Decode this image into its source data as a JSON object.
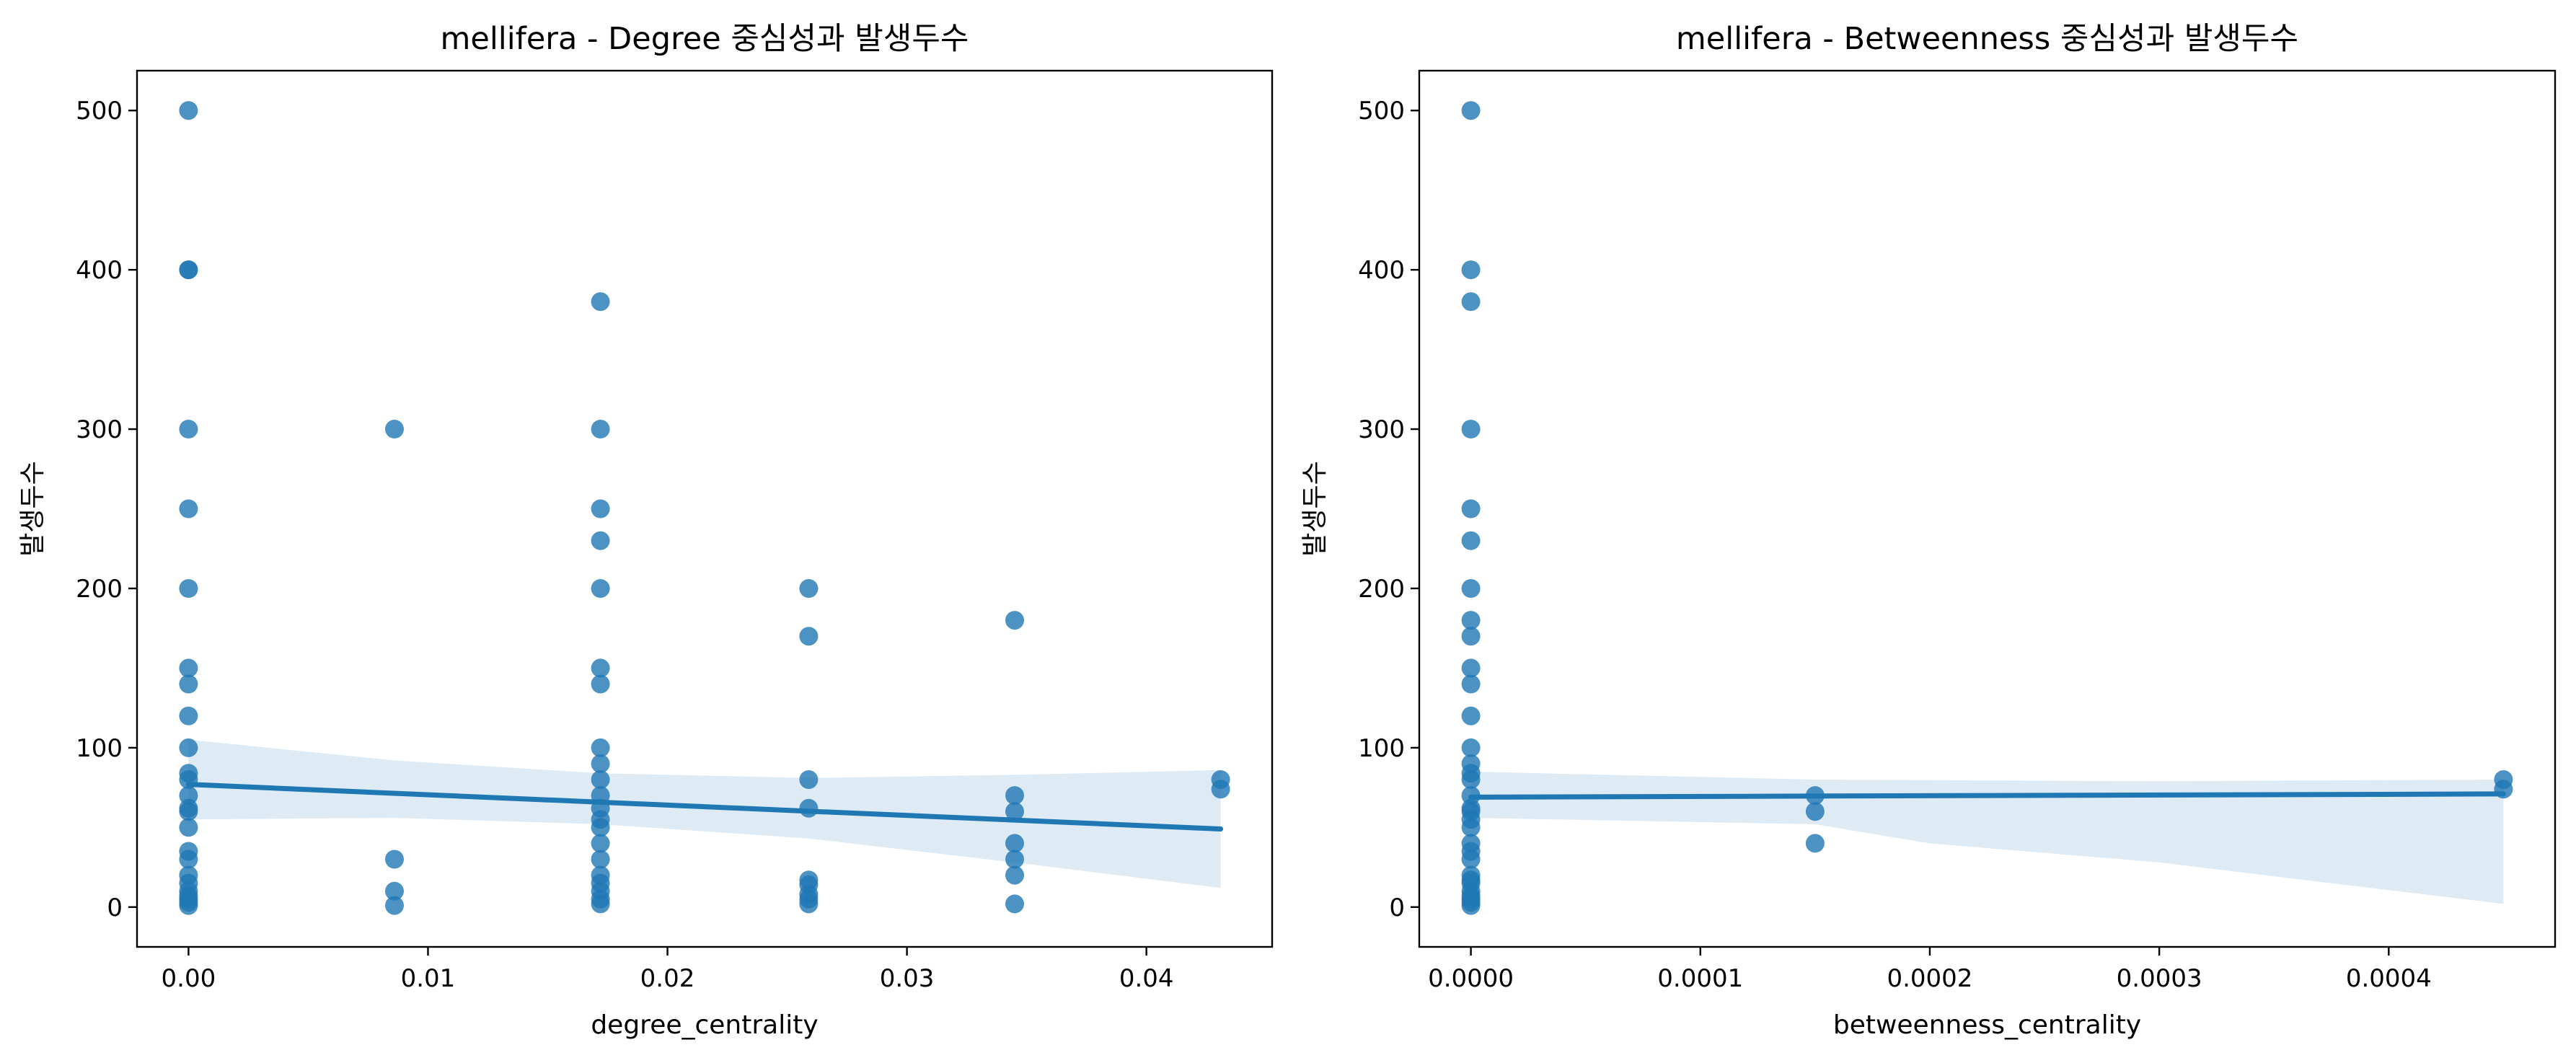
{
  "chart_data": [
    {
      "type": "scatter",
      "title": "mellifera - Degree 중심성과 발생두수",
      "xlabel": "degree_centrality",
      "ylabel": "발생두수",
      "xlim": [
        -0.00215,
        0.04525
      ],
      "ylim": [
        -25,
        525
      ],
      "xticks": [
        0,
        0.01,
        0.02,
        0.03,
        0.04
      ],
      "xtick_labels": [
        "0.00",
        "0.01",
        "0.02",
        "0.03",
        "0.04"
      ],
      "yticks": [
        0,
        100,
        200,
        300,
        400,
        500
      ],
      "ytick_labels": [
        "0",
        "100",
        "200",
        "300",
        "400",
        "500"
      ],
      "grid": false,
      "series": [
        {
          "points": [
            [
              0,
              500
            ],
            [
              0,
              400
            ],
            [
              0,
              400
            ],
            [
              0,
              300
            ],
            [
              0,
              250
            ],
            [
              0,
              200
            ],
            [
              0,
              150
            ],
            [
              0,
              140
            ],
            [
              0,
              120
            ],
            [
              0,
              100
            ],
            [
              0,
              84
            ],
            [
              0,
              80
            ],
            [
              0,
              70
            ],
            [
              0,
              62
            ],
            [
              0,
              60
            ],
            [
              0,
              50
            ],
            [
              0,
              35
            ],
            [
              0,
              30
            ],
            [
              0,
              20
            ],
            [
              0,
              15
            ],
            [
              0,
              10
            ],
            [
              0,
              7
            ],
            [
              0,
              5
            ],
            [
              0,
              3
            ],
            [
              0,
              1
            ],
            [
              0.0086,
              300
            ],
            [
              0.0086,
              30
            ],
            [
              0.0086,
              10
            ],
            [
              0.0086,
              1
            ],
            [
              0.0172,
              380
            ],
            [
              0.0172,
              300
            ],
            [
              0.0172,
              250
            ],
            [
              0.0172,
              230
            ],
            [
              0.0172,
              200
            ],
            [
              0.0172,
              150
            ],
            [
              0.0172,
              140
            ],
            [
              0.0172,
              100
            ],
            [
              0.0172,
              90
            ],
            [
              0.0172,
              80
            ],
            [
              0.0172,
              70
            ],
            [
              0.0172,
              62
            ],
            [
              0.0172,
              55
            ],
            [
              0.0172,
              50
            ],
            [
              0.0172,
              40
            ],
            [
              0.0172,
              30
            ],
            [
              0.0172,
              20
            ],
            [
              0.0172,
              15
            ],
            [
              0.0172,
              10
            ],
            [
              0.0172,
              5
            ],
            [
              0.0172,
              2
            ],
            [
              0.0259,
              200
            ],
            [
              0.0259,
              170
            ],
            [
              0.0259,
              80
            ],
            [
              0.0259,
              62
            ],
            [
              0.0259,
              17
            ],
            [
              0.0259,
              14
            ],
            [
              0.0259,
              8
            ],
            [
              0.0259,
              5
            ],
            [
              0.0259,
              2
            ],
            [
              0.0345,
              180
            ],
            [
              0.0345,
              70
            ],
            [
              0.0345,
              60
            ],
            [
              0.0345,
              40
            ],
            [
              0.0345,
              30
            ],
            [
              0.0345,
              20
            ],
            [
              0.0345,
              2
            ],
            [
              0.0431,
              80
            ],
            [
              0.0431,
              74
            ]
          ]
        }
      ],
      "regression": {
        "x": [
          0,
          0.0431
        ],
        "y": [
          77,
          49
        ],
        "ci_upper": [
          [
            0,
            105
          ],
          [
            0.0086,
            92
          ],
          [
            0.0172,
            84
          ],
          [
            0.0259,
            81
          ],
          [
            0.0345,
            83
          ],
          [
            0.0431,
            86
          ]
        ],
        "ci_lower": [
          [
            0,
            55
          ],
          [
            0.0086,
            56
          ],
          [
            0.0172,
            52
          ],
          [
            0.0259,
            43
          ],
          [
            0.0345,
            28
          ],
          [
            0.0431,
            12
          ]
        ]
      }
    },
    {
      "type": "scatter",
      "title": "mellifera - Betweenness 중심성과 발생두수",
      "xlabel": "betweenness_centrality",
      "ylabel": "발생두수",
      "xlim": [
        -2.25e-05,
        0.0004725
      ],
      "ylim": [
        -25,
        525
      ],
      "xticks": [
        0,
        0.0001,
        0.0002,
        0.0003,
        0.0004
      ],
      "xtick_labels": [
        "0.0000",
        "0.0001",
        "0.0002",
        "0.0003",
        "0.0004"
      ],
      "yticks": [
        0,
        100,
        200,
        300,
        400,
        500
      ],
      "ytick_labels": [
        "0",
        "100",
        "200",
        "300",
        "400",
        "500"
      ],
      "grid": false,
      "series": [
        {
          "points": [
            [
              0,
              500
            ],
            [
              0,
              400
            ],
            [
              0,
              380
            ],
            [
              0,
              300
            ],
            [
              0,
              250
            ],
            [
              0,
              230
            ],
            [
              0,
              200
            ],
            [
              0,
              180
            ],
            [
              0,
              170
            ],
            [
              0,
              150
            ],
            [
              0,
              140
            ],
            [
              0,
              120
            ],
            [
              0,
              100
            ],
            [
              0,
              90
            ],
            [
              0,
              84
            ],
            [
              0,
              80
            ],
            [
              0,
              70
            ],
            [
              0,
              62
            ],
            [
              0,
              60
            ],
            [
              0,
              55
            ],
            [
              0,
              50
            ],
            [
              0,
              40
            ],
            [
              0,
              35
            ],
            [
              0,
              30
            ],
            [
              0,
              20
            ],
            [
              0,
              17
            ],
            [
              0,
              15
            ],
            [
              0,
              10
            ],
            [
              0,
              7
            ],
            [
              0,
              5
            ],
            [
              0,
              3
            ],
            [
              0,
              1
            ],
            [
              0.00015,
              70
            ],
            [
              0.00015,
              60
            ],
            [
              0.00015,
              40
            ],
            [
              0.00045,
              80
            ],
            [
              0.00045,
              74
            ]
          ]
        }
      ],
      "regression": {
        "x": [
          0,
          0.00045
        ],
        "y": [
          69,
          71
        ],
        "ci_upper": [
          [
            0,
            85
          ],
          [
            0.00015,
            80
          ],
          [
            0.0003,
            79
          ],
          [
            0.00045,
            80
          ]
        ],
        "ci_lower": [
          [
            0,
            56
          ],
          [
            0.00015,
            52
          ],
          [
            0.0002,
            40
          ],
          [
            0.0003,
            28
          ],
          [
            0.00045,
            2
          ]
        ]
      }
    }
  ]
}
